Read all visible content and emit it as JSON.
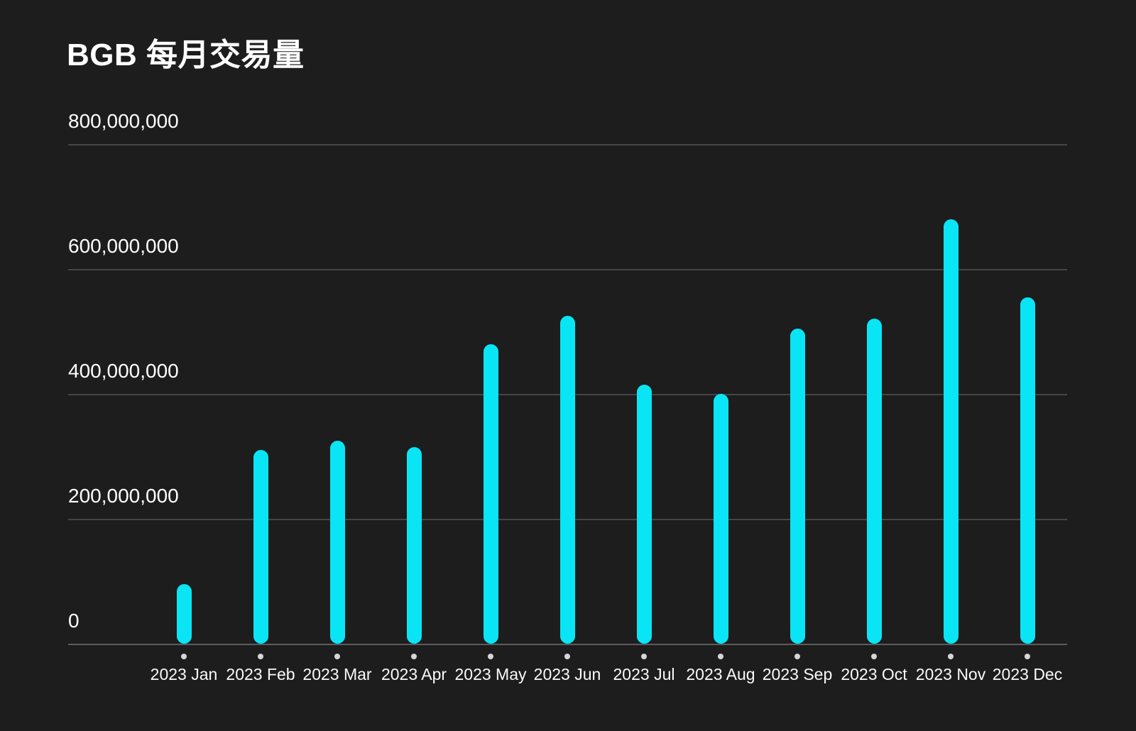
{
  "page": {
    "title": "BGB 每月交易量"
  },
  "chart_data": {
    "type": "bar",
    "title": "BGB 每月交易量",
    "categories": [
      "2023 Jan",
      "2023 Feb",
      "2023 Mar",
      "2023 Apr",
      "2023 May",
      "2023 Jun",
      "2023 Jul",
      "2023 Aug",
      "2023 Sep",
      "2023 Oct",
      "2023 Nov",
      "2023 Dec"
    ],
    "values": [
      95000000,
      310000000,
      325000000,
      315000000,
      480000000,
      525000000,
      415000000,
      400000000,
      505000000,
      520000000,
      680000000,
      555000000
    ],
    "xlabel": "",
    "ylabel": "",
    "ylim": [
      0,
      800000000
    ],
    "yticks": [
      0,
      200000000,
      400000000,
      600000000,
      800000000
    ],
    "ytick_labels": [
      "0",
      "200,000,000",
      "400,000,000",
      "600,000,000",
      "800,000,000"
    ],
    "grid": true,
    "legend": false,
    "colors": {
      "background": "#1D1D1E",
      "bar": "#0AE5F5",
      "grid_line": "#454545",
      "axis_line": "#5C5C5C",
      "tick_dot": "#D6D6D6",
      "title_text": "#FFFFFF",
      "label_text": "#FAFAFA"
    }
  }
}
